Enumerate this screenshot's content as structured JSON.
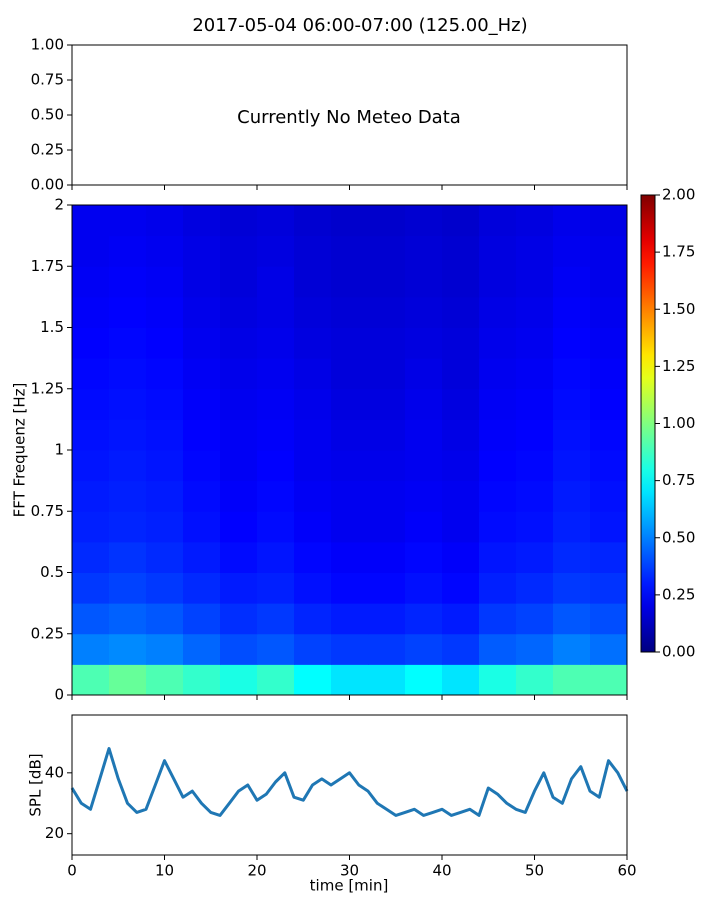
{
  "chart_data": [
    {
      "type": "empty",
      "title": "2017-05-04 06:00-07:00 (125.00_Hz)",
      "annotation": "Currently No Meteo Data",
      "ylim": [
        0,
        1
      ],
      "yticks": [
        {
          "value": 0,
          "label": "0.00"
        },
        {
          "value": 0.25,
          "label": "0.25"
        },
        {
          "value": 0.5,
          "label": "0.50"
        },
        {
          "value": 0.75,
          "label": "0.75"
        },
        {
          "value": 1,
          "label": "1.00"
        }
      ]
    },
    {
      "type": "heatmap",
      "ylabel": "FFT Frequenz [Hz]",
      "colormap": "jet",
      "xlim": [
        0,
        60
      ],
      "ylim": [
        0,
        2
      ],
      "yticks": [
        0,
        0.25,
        0.5,
        0.75,
        1,
        1.25,
        1.5,
        1.75,
        2
      ],
      "xbins": [
        0,
        4,
        8,
        12,
        16,
        20,
        24,
        28,
        32,
        36,
        40,
        44,
        48,
        52,
        56,
        60
      ],
      "ybins": [
        0,
        0.125,
        0.25,
        0.375,
        0.5,
        0.625,
        0.75,
        0.875,
        1,
        1.125,
        1.25,
        1.375,
        1.5,
        1.625,
        1.75,
        1.875,
        2
      ],
      "z": [
        [
          0.9,
          0.95,
          0.9,
          0.85,
          0.8,
          0.85,
          0.75,
          0.7,
          0.7,
          0.75,
          0.7,
          0.8,
          0.85,
          0.9,
          0.9
        ],
        [
          0.5,
          0.52,
          0.5,
          0.45,
          0.4,
          0.42,
          0.38,
          0.36,
          0.36,
          0.38,
          0.36,
          0.43,
          0.45,
          0.5,
          0.47
        ],
        [
          0.42,
          0.44,
          0.42,
          0.38,
          0.34,
          0.36,
          0.32,
          0.3,
          0.3,
          0.32,
          0.3,
          0.36,
          0.38,
          0.42,
          0.4
        ],
        [
          0.36,
          0.38,
          0.36,
          0.33,
          0.3,
          0.31,
          0.28,
          0.26,
          0.26,
          0.28,
          0.26,
          0.31,
          0.33,
          0.36,
          0.35
        ],
        [
          0.33,
          0.35,
          0.33,
          0.3,
          0.27,
          0.29,
          0.26,
          0.24,
          0.24,
          0.26,
          0.24,
          0.29,
          0.3,
          0.33,
          0.32
        ],
        [
          0.31,
          0.32,
          0.31,
          0.28,
          0.25,
          0.27,
          0.24,
          0.22,
          0.22,
          0.24,
          0.22,
          0.27,
          0.28,
          0.31,
          0.29
        ],
        [
          0.3,
          0.31,
          0.3,
          0.27,
          0.24,
          0.26,
          0.23,
          0.22,
          0.22,
          0.23,
          0.22,
          0.26,
          0.27,
          0.3,
          0.28
        ],
        [
          0.29,
          0.3,
          0.29,
          0.26,
          0.23,
          0.25,
          0.22,
          0.21,
          0.21,
          0.22,
          0.21,
          0.25,
          0.26,
          0.29,
          0.27
        ],
        [
          0.28,
          0.29,
          0.28,
          0.25,
          0.23,
          0.24,
          0.22,
          0.2,
          0.2,
          0.22,
          0.2,
          0.24,
          0.25,
          0.28,
          0.26
        ],
        [
          0.27,
          0.28,
          0.27,
          0.24,
          0.22,
          0.23,
          0.21,
          0.19,
          0.19,
          0.21,
          0.19,
          0.23,
          0.24,
          0.27,
          0.25
        ],
        [
          0.26,
          0.27,
          0.26,
          0.23,
          0.21,
          0.22,
          0.2,
          0.18,
          0.18,
          0.2,
          0.18,
          0.22,
          0.23,
          0.26,
          0.24
        ],
        [
          0.25,
          0.26,
          0.25,
          0.22,
          0.2,
          0.21,
          0.19,
          0.18,
          0.18,
          0.19,
          0.18,
          0.21,
          0.22,
          0.25,
          0.23
        ],
        [
          0.24,
          0.25,
          0.24,
          0.21,
          0.19,
          0.2,
          0.18,
          0.17,
          0.17,
          0.18,
          0.17,
          0.2,
          0.21,
          0.24,
          0.22
        ],
        [
          0.23,
          0.24,
          0.23,
          0.2,
          0.18,
          0.2,
          0.17,
          0.16,
          0.16,
          0.17,
          0.16,
          0.19,
          0.2,
          0.23,
          0.21
        ],
        [
          0.22,
          0.23,
          0.22,
          0.2,
          0.18,
          0.19,
          0.17,
          0.16,
          0.16,
          0.17,
          0.16,
          0.19,
          0.2,
          0.22,
          0.21
        ],
        [
          0.22,
          0.22,
          0.21,
          0.19,
          0.17,
          0.18,
          0.16,
          0.15,
          0.15,
          0.16,
          0.15,
          0.18,
          0.19,
          0.21,
          0.2
        ]
      ],
      "clim": [
        0,
        2
      ],
      "cticks": [
        {
          "value": 0,
          "label": "0.00"
        },
        {
          "value": 0.25,
          "label": "0.25"
        },
        {
          "value": 0.5,
          "label": "0.50"
        },
        {
          "value": 0.75,
          "label": "0.75"
        },
        {
          "value": 1,
          "label": "1.00"
        },
        {
          "value": 1.25,
          "label": "1.25"
        },
        {
          "value": 1.5,
          "label": "1.50"
        },
        {
          "value": 1.75,
          "label": "1.75"
        },
        {
          "value": 2,
          "label": "2.00"
        }
      ]
    },
    {
      "type": "line",
      "xlabel": "time [min]",
      "ylabel": "SPL [dB]",
      "xlim": [
        0,
        60
      ],
      "ylim": [
        13,
        59
      ],
      "xticks": [
        0,
        10,
        20,
        30,
        40,
        50,
        60
      ],
      "yticks": [
        20,
        40
      ],
      "x": [
        0,
        1,
        2,
        3,
        4,
        5,
        6,
        7,
        8,
        9,
        10,
        11,
        12,
        13,
        14,
        15,
        16,
        17,
        18,
        19,
        20,
        21,
        22,
        23,
        24,
        25,
        26,
        27,
        28,
        29,
        30,
        31,
        32,
        33,
        34,
        35,
        36,
        37,
        38,
        39,
        40,
        41,
        42,
        43,
        44,
        45,
        46,
        47,
        48,
        49,
        50,
        51,
        52,
        53,
        54,
        55,
        56,
        57,
        58,
        59,
        60
      ],
      "series": [
        {
          "color": "#1f77b4",
          "values": [
            35,
            30,
            28,
            38,
            48,
            38,
            30,
            27,
            28,
            36,
            44,
            38,
            32,
            34,
            30,
            27,
            26,
            30,
            34,
            36,
            31,
            33,
            37,
            40,
            32,
            31,
            36,
            38,
            36,
            38,
            40,
            36,
            34,
            30,
            28,
            26,
            27,
            28,
            26,
            27,
            28,
            26,
            27,
            28,
            26,
            35,
            33,
            30,
            28,
            27,
            34,
            40,
            32,
            30,
            38,
            42,
            34,
            32,
            44,
            40,
            34
          ]
        }
      ]
    }
  ]
}
